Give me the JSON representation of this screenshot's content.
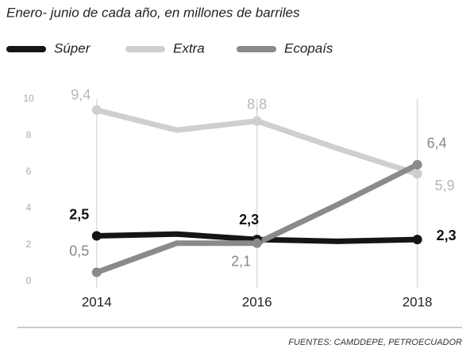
{
  "chart_data": {
    "type": "line",
    "subtitle": "Enero- junio de cada año, en millones de barriles",
    "source": "FUENTES: CAMDDEPE, PETROECUADOR",
    "x": [
      2014,
      2015,
      2016,
      2017,
      2018
    ],
    "xlim": [
      2013.2,
      2018.4
    ],
    "xticks": [
      2014,
      2016,
      2018
    ],
    "ylim": [
      0,
      10
    ],
    "yticks": [
      0,
      2,
      4,
      6,
      8,
      10
    ],
    "grid": "x",
    "legend": "top",
    "series": [
      {
        "name": "Súper",
        "color": "#151515",
        "values": [
          2.5,
          2.6,
          2.3,
          2.2,
          2.3
        ],
        "value_labels": [
          "2,5",
          null,
          "2,3",
          null,
          "2,3"
        ]
      },
      {
        "name": "Extra",
        "color": "#cfcfcf",
        "values": [
          9.4,
          8.3,
          8.8,
          7.3,
          5.9
        ],
        "value_labels": [
          "9,4",
          null,
          "8,8",
          null,
          "5,9"
        ]
      },
      {
        "name": "Ecopaís",
        "color": "#8a8a8a",
        "values": [
          0.5,
          2.1,
          2.1,
          4.2,
          6.4
        ],
        "value_labels": [
          "0,5",
          null,
          "2,1",
          null,
          "6,4"
        ]
      }
    ]
  }
}
